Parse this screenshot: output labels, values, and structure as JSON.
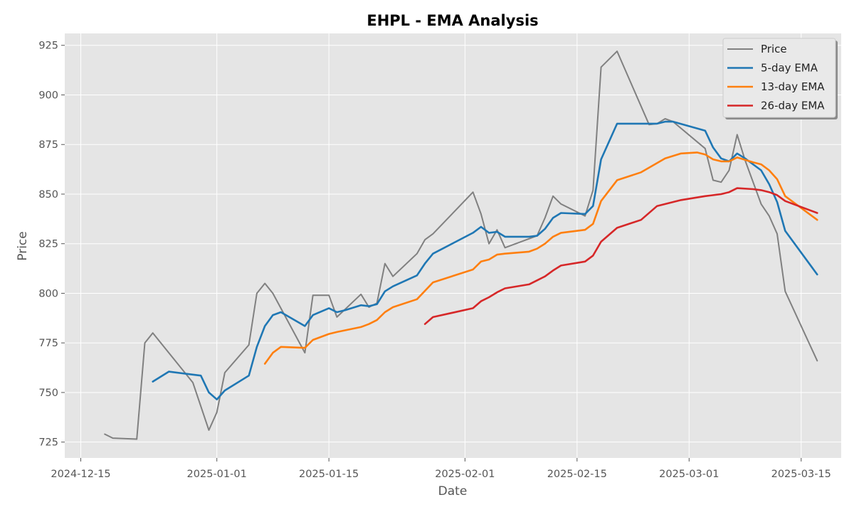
{
  "chart_data": {
    "type": "line",
    "title": "EHPL - EMA Analysis",
    "xlabel": "Date",
    "ylabel": "Price",
    "x_ticks": [
      "2024-12-15",
      "2025-01-01",
      "2025-01-15",
      "2025-02-01",
      "2025-02-15",
      "2025-03-01",
      "2025-03-15"
    ],
    "y_ticks": [
      725,
      750,
      775,
      800,
      825,
      850,
      875,
      900,
      925
    ],
    "xlim": [
      "2024-12-13",
      "2025-03-20"
    ],
    "ylim": [
      717,
      931
    ],
    "grid": true,
    "legend_position": "top-right",
    "colors": {
      "background": "#e5e5e5",
      "grid": "#ffffff"
    },
    "series": [
      {
        "name": "Price",
        "color": "#808080",
        "points": [
          [
            "2024-12-18",
            729
          ],
          [
            "2024-12-19",
            727
          ],
          [
            "2024-12-22",
            726.5
          ],
          [
            "2024-12-23",
            775
          ],
          [
            "2024-12-24",
            780
          ],
          [
            "2024-12-29",
            755
          ],
          [
            "2024-12-31",
            731
          ],
          [
            "2025-01-01",
            740
          ],
          [
            "2025-01-02",
            760
          ],
          [
            "2025-01-05",
            774
          ],
          [
            "2025-01-06",
            800
          ],
          [
            "2025-01-07",
            805
          ],
          [
            "2025-01-08",
            800
          ],
          [
            "2025-01-12",
            770
          ],
          [
            "2025-01-13",
            799
          ],
          [
            "2025-01-15",
            799
          ],
          [
            "2025-01-16",
            788
          ],
          [
            "2025-01-19",
            799.5
          ],
          [
            "2025-01-20",
            793
          ],
          [
            "2025-01-21",
            795
          ],
          [
            "2025-01-22",
            815
          ],
          [
            "2025-01-23",
            808.5
          ],
          [
            "2025-01-26",
            820
          ],
          [
            "2025-01-27",
            827
          ],
          [
            "2025-01-28",
            830
          ],
          [
            "2025-02-02",
            851
          ],
          [
            "2025-02-03",
            840
          ],
          [
            "2025-02-04",
            825
          ],
          [
            "2025-02-05",
            832
          ],
          [
            "2025-02-06",
            823
          ],
          [
            "2025-02-10",
            829
          ],
          [
            "2025-02-11",
            838
          ],
          [
            "2025-02-12",
            849
          ],
          [
            "2025-02-13",
            845
          ],
          [
            "2025-02-16",
            839
          ],
          [
            "2025-02-17",
            852
          ],
          [
            "2025-02-18",
            914
          ],
          [
            "2025-02-20",
            922
          ],
          [
            "2025-02-24",
            885
          ],
          [
            "2025-02-25",
            885.5
          ],
          [
            "2025-02-26",
            888
          ],
          [
            "2025-02-27",
            886.5
          ],
          [
            "2025-03-03",
            873
          ],
          [
            "2025-03-04",
            857
          ],
          [
            "2025-03-05",
            856
          ],
          [
            "2025-03-06",
            862
          ],
          [
            "2025-03-07",
            880
          ],
          [
            "2025-03-08",
            867
          ],
          [
            "2025-03-10",
            845
          ],
          [
            "2025-03-11",
            839
          ],
          [
            "2025-03-12",
            830
          ],
          [
            "2025-03-13",
            801
          ],
          [
            "2025-03-17",
            766
          ]
        ]
      },
      {
        "name": "5-day EMA",
        "color": "#1f77b4",
        "points": [
          [
            "2024-12-24",
            755.5
          ],
          [
            "2024-12-26",
            760.5
          ],
          [
            "2024-12-29",
            759
          ],
          [
            "2024-12-30",
            758.5
          ],
          [
            "2024-12-31",
            750
          ],
          [
            "2025-01-01",
            746.5
          ],
          [
            "2025-01-02",
            751
          ],
          [
            "2025-01-05",
            758.5
          ],
          [
            "2025-01-06",
            773
          ],
          [
            "2025-01-07",
            783.5
          ],
          [
            "2025-01-08",
            789
          ],
          [
            "2025-01-09",
            790.5
          ],
          [
            "2025-01-12",
            783.5
          ],
          [
            "2025-01-13",
            789
          ],
          [
            "2025-01-15",
            792.5
          ],
          [
            "2025-01-16",
            790.5
          ],
          [
            "2025-01-17",
            791.5
          ],
          [
            "2025-01-19",
            794
          ],
          [
            "2025-01-20",
            793.5
          ],
          [
            "2025-01-21",
            794.5
          ],
          [
            "2025-01-22",
            801
          ],
          [
            "2025-01-23",
            803.5
          ],
          [
            "2025-01-26",
            809
          ],
          [
            "2025-01-27",
            815
          ],
          [
            "2025-01-28",
            820
          ],
          [
            "2025-02-02",
            830.5
          ],
          [
            "2025-02-03",
            833.5
          ],
          [
            "2025-02-04",
            830.5
          ],
          [
            "2025-02-05",
            831
          ],
          [
            "2025-02-06",
            828.5
          ],
          [
            "2025-02-09",
            828.5
          ],
          [
            "2025-02-10",
            829
          ],
          [
            "2025-02-11",
            832.5
          ],
          [
            "2025-02-12",
            838
          ],
          [
            "2025-02-13",
            840.5
          ],
          [
            "2025-02-16",
            840
          ],
          [
            "2025-02-17",
            844
          ],
          [
            "2025-02-18",
            867.5
          ],
          [
            "2025-02-20",
            885.5
          ],
          [
            "2025-02-24",
            885.5
          ],
          [
            "2025-02-25",
            885.5
          ],
          [
            "2025-02-26",
            886.5
          ],
          [
            "2025-02-27",
            886.5
          ],
          [
            "2025-03-03",
            882
          ],
          [
            "2025-03-04",
            873.5
          ],
          [
            "2025-03-05",
            868
          ],
          [
            "2025-03-06",
            866.5
          ],
          [
            "2025-03-07",
            870.5
          ],
          [
            "2025-03-08",
            868
          ],
          [
            "2025-03-10",
            862
          ],
          [
            "2025-03-11",
            855
          ],
          [
            "2025-03-12",
            846
          ],
          [
            "2025-03-13",
            831.5
          ],
          [
            "2025-03-17",
            809.5
          ]
        ]
      },
      {
        "name": "13-day EMA",
        "color": "#ff7f0e",
        "points": [
          [
            "2025-01-07",
            764.5
          ],
          [
            "2025-01-08",
            770
          ],
          [
            "2025-01-09",
            773
          ],
          [
            "2025-01-12",
            772.5
          ],
          [
            "2025-01-13",
            776.5
          ],
          [
            "2025-01-15",
            779.5
          ],
          [
            "2025-01-16",
            780.5
          ],
          [
            "2025-01-19",
            783
          ],
          [
            "2025-01-20",
            784.5
          ],
          [
            "2025-01-21",
            786.5
          ],
          [
            "2025-01-22",
            790.5
          ],
          [
            "2025-01-23",
            793
          ],
          [
            "2025-01-26",
            797
          ],
          [
            "2025-01-28",
            805.5
          ],
          [
            "2025-02-02",
            812
          ],
          [
            "2025-02-03",
            816
          ],
          [
            "2025-02-04",
            817
          ],
          [
            "2025-02-05",
            819.5
          ],
          [
            "2025-02-06",
            820
          ],
          [
            "2025-02-09",
            821
          ],
          [
            "2025-02-10",
            822.5
          ],
          [
            "2025-02-11",
            825
          ],
          [
            "2025-02-12",
            828.5
          ],
          [
            "2025-02-13",
            830.5
          ],
          [
            "2025-02-16",
            832
          ],
          [
            "2025-02-17",
            835
          ],
          [
            "2025-02-18",
            846.5
          ],
          [
            "2025-02-20",
            857
          ],
          [
            "2025-02-23",
            861
          ],
          [
            "2025-02-26",
            868
          ],
          [
            "2025-02-28",
            870.5
          ],
          [
            "2025-03-02",
            871
          ],
          [
            "2025-03-03",
            870
          ],
          [
            "2025-03-04",
            867.5
          ],
          [
            "2025-03-05",
            866.5
          ],
          [
            "2025-03-06",
            866.5
          ],
          [
            "2025-03-07",
            868.5
          ],
          [
            "2025-03-09",
            866
          ],
          [
            "2025-03-10",
            865
          ],
          [
            "2025-03-11",
            862
          ],
          [
            "2025-03-12",
            857.5
          ],
          [
            "2025-03-13",
            849
          ],
          [
            "2025-03-17",
            837
          ]
        ]
      },
      {
        "name": "26-day EMA",
        "color": "#d62728",
        "points": [
          [
            "2025-01-27",
            784.5
          ],
          [
            "2025-01-28",
            788
          ],
          [
            "2025-02-02",
            792.5
          ],
          [
            "2025-02-03",
            796
          ],
          [
            "2025-02-04",
            798
          ],
          [
            "2025-02-05",
            800.5
          ],
          [
            "2025-02-06",
            802.5
          ],
          [
            "2025-02-09",
            804.5
          ],
          [
            "2025-02-10",
            806.5
          ],
          [
            "2025-02-11",
            808.5
          ],
          [
            "2025-02-12",
            811.5
          ],
          [
            "2025-02-13",
            814
          ],
          [
            "2025-02-16",
            816
          ],
          [
            "2025-02-17",
            819
          ],
          [
            "2025-02-18",
            826
          ],
          [
            "2025-02-20",
            833
          ],
          [
            "2025-02-23",
            837
          ],
          [
            "2025-02-25",
            844
          ],
          [
            "2025-02-28",
            847
          ],
          [
            "2025-03-03",
            849
          ],
          [
            "2025-03-05",
            850
          ],
          [
            "2025-03-06",
            851
          ],
          [
            "2025-03-07",
            853
          ],
          [
            "2025-03-09",
            852.5
          ],
          [
            "2025-03-10",
            852
          ],
          [
            "2025-03-11",
            851
          ],
          [
            "2025-03-12",
            849.5
          ],
          [
            "2025-03-13",
            846.5
          ],
          [
            "2025-03-17",
            840.5
          ]
        ]
      }
    ]
  }
}
